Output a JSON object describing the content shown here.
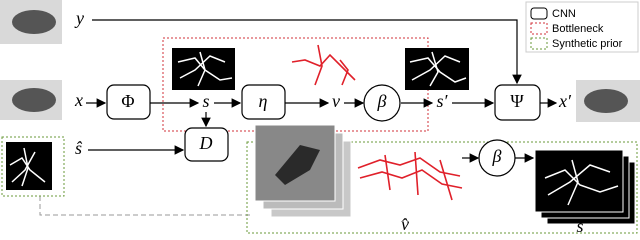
{
  "labels": {
    "y": "y",
    "x": "x",
    "phi": "Φ",
    "s": "s",
    "eta": "η",
    "v": "v",
    "beta": "β",
    "s_prime": "s′",
    "psi": "Ψ",
    "x_prime": "x′",
    "d": "D",
    "s_hat": "ŝ",
    "beta_prior": "β",
    "v_hat": "v̂",
    "s_hat_hat": "ŝ̂"
  },
  "legend": [
    "CNN",
    "Bottleneck",
    "Synthetic prior"
  ]
}
